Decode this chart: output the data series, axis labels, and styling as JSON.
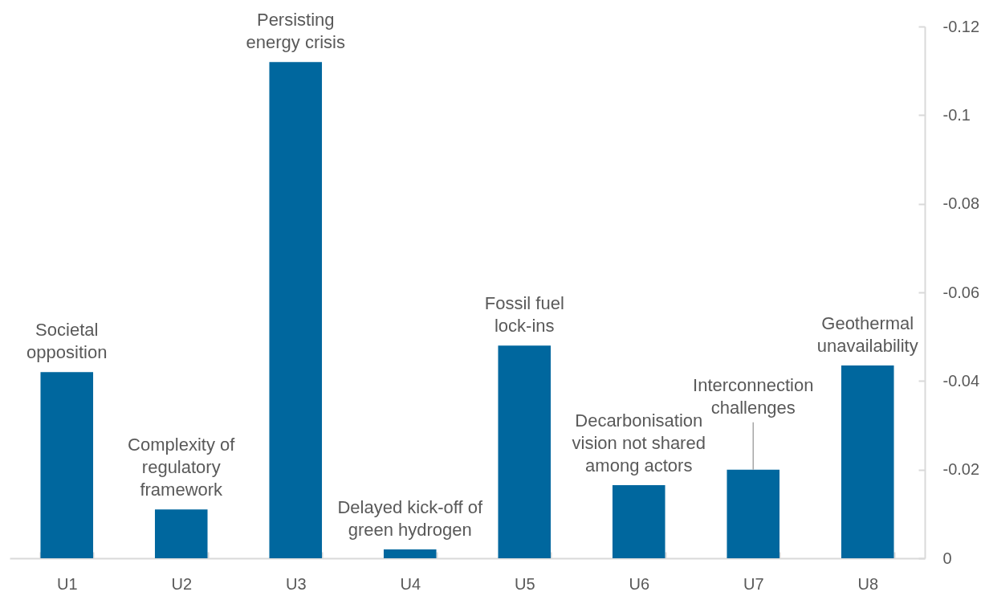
{
  "chart_data": {
    "type": "bar",
    "categories": [
      "U1",
      "U2",
      "U3",
      "U4",
      "U5",
      "U6",
      "U7",
      "U8"
    ],
    "values": [
      -0.042,
      -0.011,
      -0.112,
      -0.002,
      -0.048,
      -0.0165,
      -0.02,
      -0.0435
    ],
    "color": "#00679e",
    "ylim": [
      0,
      -0.12
    ],
    "yticks": [
      -0.12,
      -0.1,
      -0.08,
      -0.06,
      -0.04,
      -0.02,
      0
    ],
    "annotations": [
      {
        "text": "Societal\nopposition",
        "x": "U1",
        "y": -0.042
      },
      {
        "text": "Complexity of\nregulatory\nframework",
        "x": "U2",
        "y": -0.011
      },
      {
        "text": "Persisting\nenergy crisis",
        "x": "U3",
        "y": -0.112
      },
      {
        "text": "Delayed kick-off of\ngreen hydrogen",
        "x": "U4",
        "y": -0.002
      },
      {
        "text": "Fossil fuel\nlock-ins",
        "x": "U5",
        "y": -0.048
      },
      {
        "text": "Decarbonisation\nvision not shared\namong actors",
        "x": "U6",
        "y": -0.0165
      },
      {
        "text": "Interconnection\nchallenges",
        "x": "U7",
        "y": -0.02
      },
      {
        "text": "Geothermal\nunavailability",
        "x": "U8",
        "y": -0.0435
      }
    ]
  }
}
